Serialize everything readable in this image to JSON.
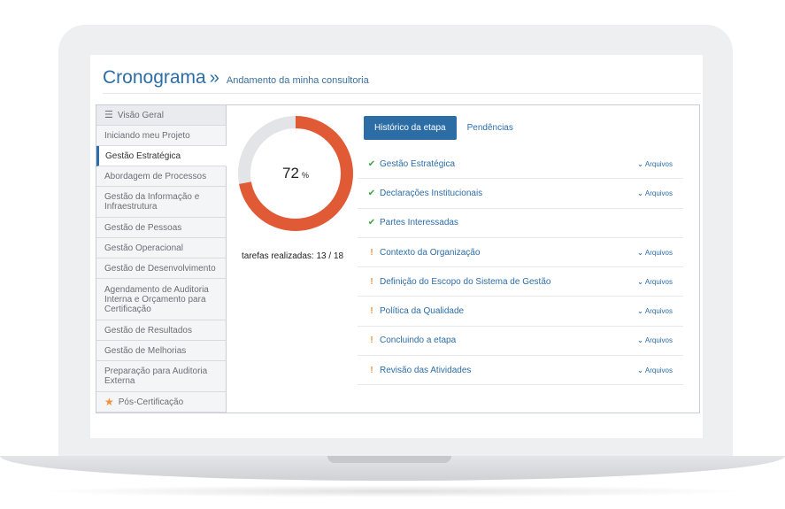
{
  "header": {
    "title": "Cronograma",
    "separator": "»",
    "subtitle": "Andamento da minha consultoria"
  },
  "sidebar": {
    "items": [
      {
        "label": "Visão Geral",
        "icon": "menu-icon"
      },
      {
        "label": "Iniciando meu Projeto"
      },
      {
        "label": "Gestão Estratégica"
      },
      {
        "label": "Abordagem de Processos"
      },
      {
        "label": "Gestão da Informação e Infraestrutura"
      },
      {
        "label": "Gestão de Pessoas"
      },
      {
        "label": "Gestão Operacional"
      },
      {
        "label": "Gestão de Desenvolvimento"
      },
      {
        "label": "Agendamento de Auditoria Interna e Orçamento para Certificação"
      },
      {
        "label": "Gestão de Resultados"
      },
      {
        "label": "Gestão de Melhorias"
      },
      {
        "label": "Preparação para Auditoria Externa"
      },
      {
        "label": "Pós-Certificação",
        "icon": "star-icon"
      }
    ]
  },
  "progress": {
    "percent": 72,
    "percent_value": "72",
    "percent_unit": "%",
    "tasks_label": "tarefas realizadas: 13 / 18",
    "done": 13,
    "total": 18,
    "color_fill": "#e05a36",
    "color_track": "#e2e4e7"
  },
  "tabs": {
    "active": "Histórico da etapa",
    "other": "Pendências"
  },
  "files_label": "Arquivos",
  "stages": [
    {
      "label": "Gestão Estratégica",
      "status": "done",
      "files": true
    },
    {
      "label": "Declarações Institucionais",
      "status": "done",
      "files": true
    },
    {
      "label": "Partes Interessadas",
      "status": "done",
      "files": false
    },
    {
      "label": "Contexto da Organização",
      "status": "pending",
      "files": true
    },
    {
      "label": "Definição do Escopo do Sistema de Gestão",
      "status": "pending",
      "files": true
    },
    {
      "label": "Política da Qualidade",
      "status": "pending",
      "files": true
    },
    {
      "label": "Concluindo a etapa",
      "status": "pending",
      "files": true
    },
    {
      "label": "Revisão das Atividades",
      "status": "pending",
      "files": true
    }
  ]
}
